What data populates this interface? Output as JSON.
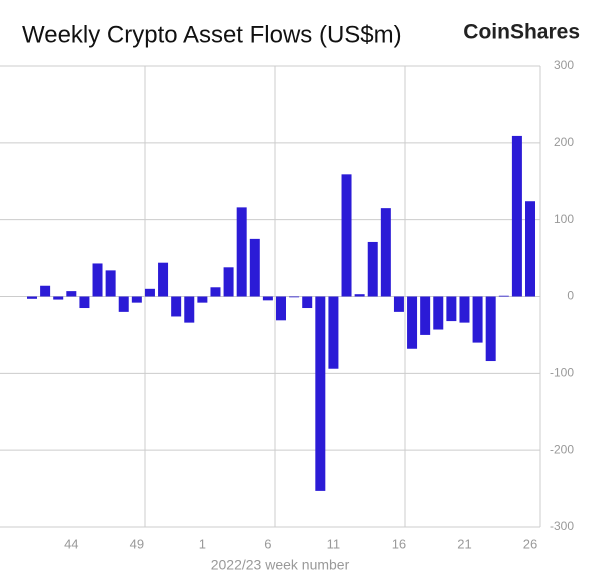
{
  "chart_data": {
    "type": "bar",
    "title": "Weekly Crypto Asset Flows (US$m)",
    "brand": "CoinShares",
    "x_label": "2022/23 week number",
    "categories": [
      null,
      null,
      null,
      "44",
      null,
      null,
      null,
      null,
      "49",
      null,
      null,
      null,
      null,
      "1",
      null,
      null,
      null,
      null,
      "6",
      null,
      null,
      null,
      null,
      "11",
      null,
      null,
      null,
      null,
      "16",
      null,
      null,
      null,
      null,
      "21",
      null,
      null,
      null,
      null,
      "26"
    ],
    "values": [
      -3,
      14,
      -4,
      7,
      -15,
      43,
      34,
      -20,
      -8,
      10,
      44,
      -26,
      -34,
      -8,
      12,
      38,
      116,
      75,
      -5,
      -31,
      0,
      -15,
      -253,
      -94,
      159,
      3,
      71,
      115,
      -20,
      -68,
      -50,
      -43,
      -32,
      -34,
      -60,
      -84,
      1,
      209,
      124
    ],
    "color": "#2b1bd6",
    "ylim": [
      -300,
      300
    ],
    "yticks": [
      -300,
      -200,
      -100,
      0,
      100,
      200,
      300
    ],
    "grid": true
  }
}
